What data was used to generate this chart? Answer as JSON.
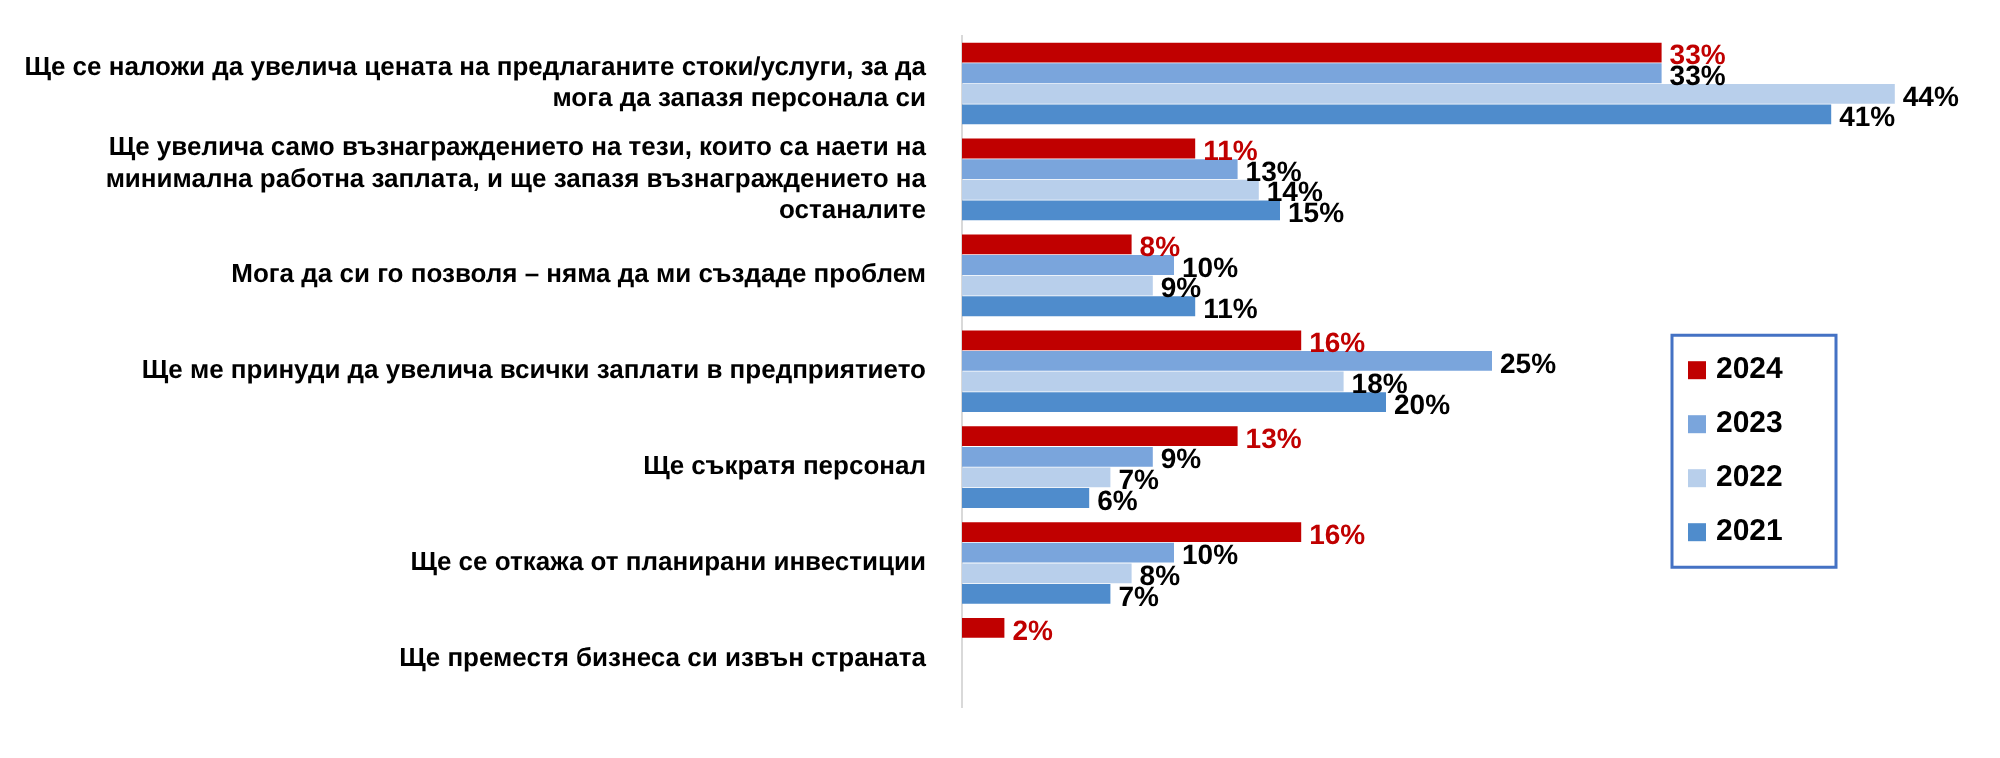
{
  "chart_data": {
    "type": "bar",
    "orientation": "horizontal",
    "legend": "right",
    "categories": [
      "Ще се наложи да увелича цената на предлаганите стоки/услуги, за да мога да запазя персонала си",
      "Ще увелича само възнаграждението на тези, които са наети на минимална работна заплата, и ще запазя възнаграждението на останалите",
      "Мога да си го позволя – няма да ми създаде проблем",
      "Ще ме принуди да увелича всички заплати в предприятието",
      "Ще съкратя персонал",
      "Ще се откажа от планирани инвестиции",
      "Ще преместя бизнеса си извън страната"
    ],
    "series": [
      {
        "name": "2024",
        "color": "#c00000",
        "values": [
          33,
          11,
          8,
          16,
          13,
          16,
          2
        ],
        "value_labels": [
          "33%",
          "11%",
          "8%",
          "16%",
          "13%",
          "16%",
          "2%"
        ]
      },
      {
        "name": "2023",
        "color": "#7aa5dc",
        "values": [
          33,
          13,
          10,
          25,
          9,
          10,
          null
        ],
        "value_labels": [
          "33%",
          "13%",
          "10%",
          "25%",
          "9%",
          "10%",
          null
        ]
      },
      {
        "name": "2022",
        "color": "#b8cfeb",
        "values": [
          44,
          14,
          9,
          18,
          7,
          8,
          null
        ],
        "value_labels": [
          "44%",
          "14%",
          "9%",
          "18%",
          "7%",
          "8%",
          null
        ]
      },
      {
        "name": "2021",
        "color": "#4f8ccc",
        "values": [
          41,
          15,
          11,
          20,
          6,
          7,
          null
        ],
        "value_labels": [
          "41%",
          "15%",
          "11%",
          "20%",
          "6%",
          "7%",
          null
        ]
      }
    ]
  }
}
